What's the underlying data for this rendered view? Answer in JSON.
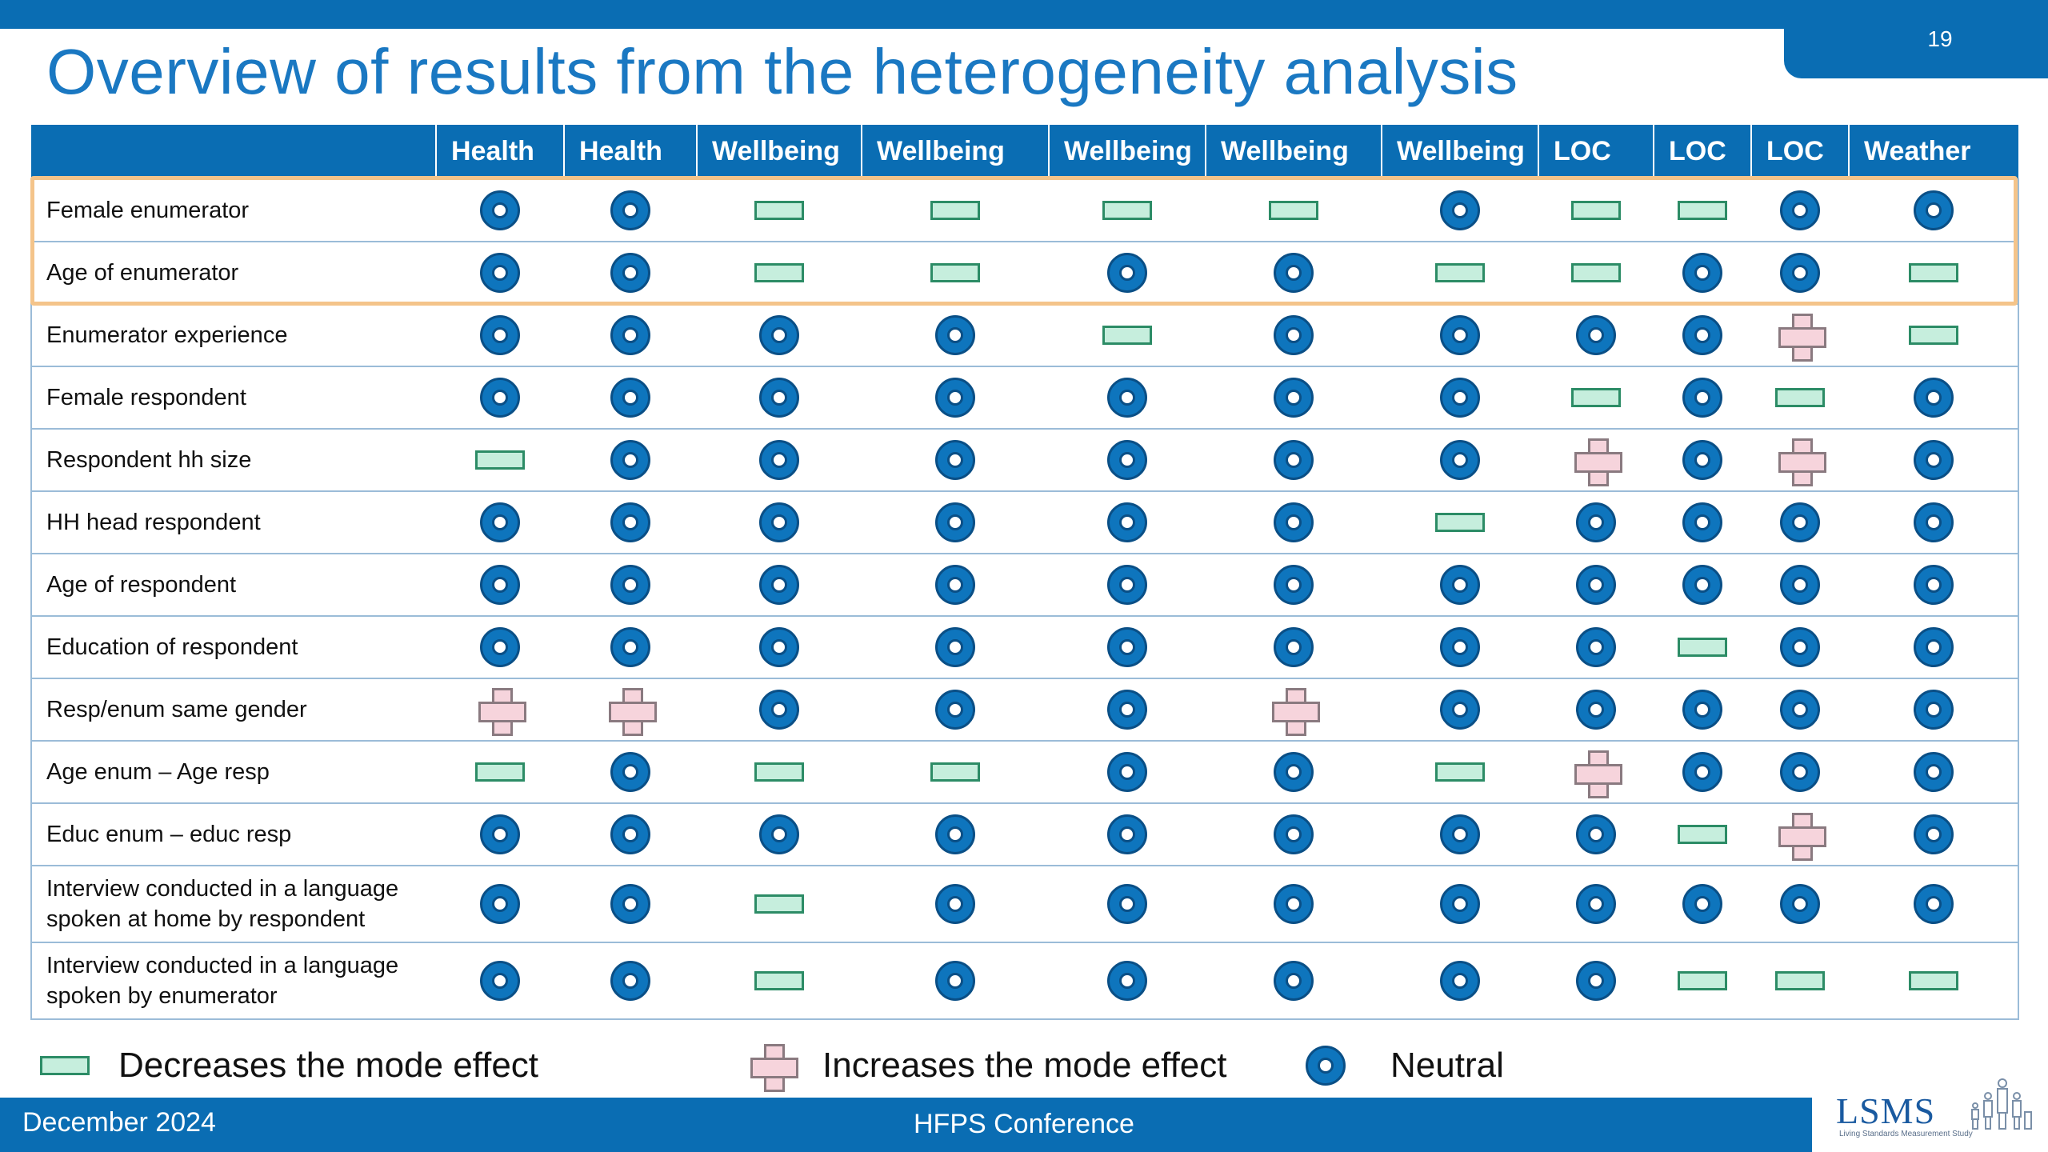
{
  "slide": {
    "title": "Overview of results from the heterogeneity analysis",
    "page_number": "19"
  },
  "table": {
    "columns": [
      "Health",
      "Health",
      "Wellbeing",
      "Wellbeing",
      "Wellbeing",
      "Wellbeing",
      "Wellbeing",
      "LOC",
      "LOC",
      "LOC",
      "Weather"
    ],
    "rows": [
      {
        "label": "Female enumerator",
        "values": [
          "N",
          "N",
          "D",
          "D",
          "D",
          "D",
          "N",
          "D",
          "D",
          "N",
          "N"
        ]
      },
      {
        "label": "Age of enumerator",
        "values": [
          "N",
          "N",
          "D",
          "D",
          "N",
          "N",
          "D",
          "D",
          "N",
          "N",
          "D"
        ]
      },
      {
        "label": "Enumerator experience",
        "values": [
          "N",
          "N",
          "N",
          "N",
          "D",
          "N",
          "N",
          "N",
          "N",
          "I",
          "D"
        ]
      },
      {
        "label": "Female respondent",
        "values": [
          "N",
          "N",
          "N",
          "N",
          "N",
          "N",
          "N",
          "D",
          "N",
          "D",
          "N"
        ]
      },
      {
        "label": "Respondent hh size",
        "values": [
          "D",
          "N",
          "N",
          "N",
          "N",
          "N",
          "N",
          "I",
          "N",
          "I",
          "N"
        ]
      },
      {
        "label": "HH head respondent",
        "values": [
          "N",
          "N",
          "N",
          "N",
          "N",
          "N",
          "D",
          "N",
          "N",
          "N",
          "N"
        ]
      },
      {
        "label": "Age of respondent",
        "values": [
          "N",
          "N",
          "N",
          "N",
          "N",
          "N",
          "N",
          "N",
          "N",
          "N",
          "N"
        ]
      },
      {
        "label": "Education of respondent",
        "values": [
          "N",
          "N",
          "N",
          "N",
          "N",
          "N",
          "N",
          "N",
          "D",
          "N",
          "N"
        ]
      },
      {
        "label": "Resp/enum same gender",
        "values": [
          "I",
          "I",
          "N",
          "N",
          "N",
          "I",
          "N",
          "N",
          "N",
          "N",
          "N"
        ]
      },
      {
        "label": "Age enum – Age resp",
        "values": [
          "D",
          "N",
          "D",
          "D",
          "N",
          "N",
          "D",
          "I",
          "N",
          "N",
          "N"
        ]
      },
      {
        "label": "Educ enum – educ resp",
        "values": [
          "N",
          "N",
          "N",
          "N",
          "N",
          "N",
          "N",
          "N",
          "D",
          "I",
          "N"
        ]
      },
      {
        "label": "Interview conducted in a language spoken at home by respondent",
        "label_lines": [
          "Interview conducted in a language",
          "spoken at home by respondent"
        ],
        "values": [
          "N",
          "N",
          "D",
          "N",
          "N",
          "N",
          "N",
          "N",
          "N",
          "N",
          "N"
        ]
      },
      {
        "label": "Interview conducted in a language spoken by enumerator",
        "label_lines": [
          "Interview conducted in a language",
          "spoken by enumerator"
        ],
        "values": [
          "N",
          "N",
          "D",
          "N",
          "N",
          "N",
          "N",
          "N",
          "D",
          "D",
          "D"
        ]
      }
    ],
    "highlighted_rows": [
      0,
      1
    ]
  },
  "legend": {
    "decrease": "Decreases the mode effect",
    "increase": "Increases the mode effect",
    "neutral": "Neutral"
  },
  "footer": {
    "date": "December 2024",
    "conference": "HFPS Conference",
    "logo": "LSMS",
    "logo_subtitle": "Living Standards Measurement Study"
  },
  "colors": {
    "brand_blue": "#0a6db3",
    "title_blue": "#1a78c2",
    "decrease_fill": "#c6eedd",
    "increase_fill": "#f6d4dc",
    "neutral_fill": "#0e75bd",
    "highlight": "#f4c48a"
  }
}
